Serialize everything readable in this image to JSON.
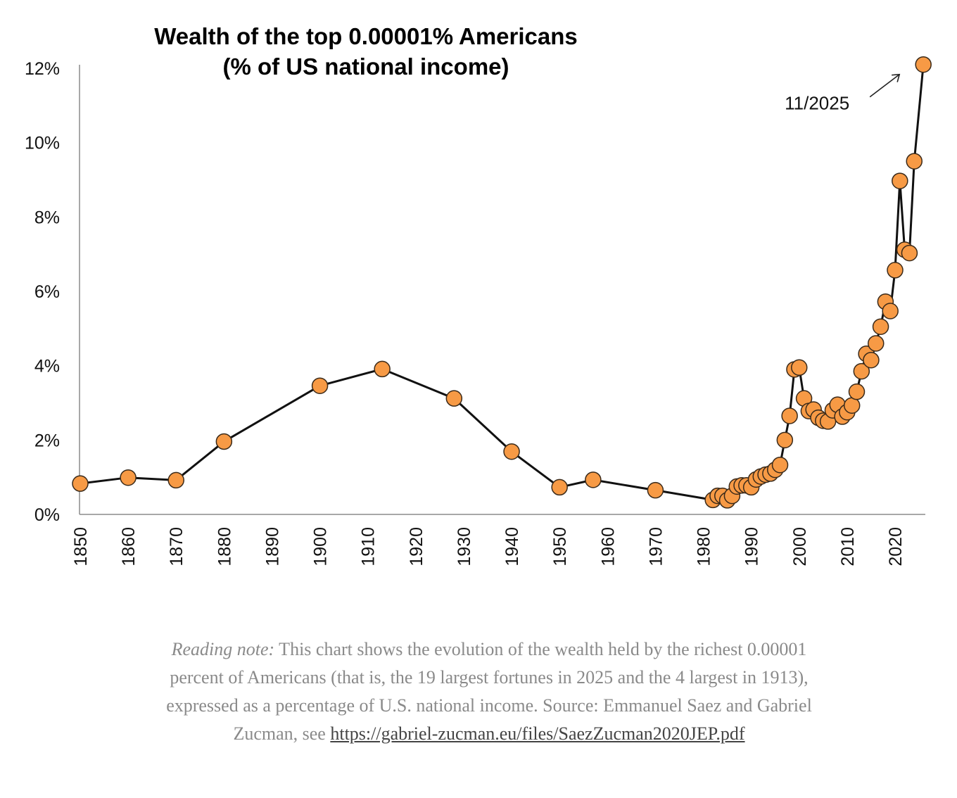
{
  "chart_data": {
    "type": "line",
    "title_lines": [
      "Wealth of the top 0.00001% Americans",
      "(% of US national income)"
    ],
    "xlabel": "",
    "ylabel": "",
    "xlim": [
      1850,
      2025.9
    ],
    "ylim": [
      0,
      12
    ],
    "grid": false,
    "legend": "none",
    "y_ticks": [
      0,
      2,
      4,
      6,
      8,
      10,
      12
    ],
    "y_tick_labels": [
      "0%",
      "2%",
      "4%",
      "6%",
      "8%",
      "10%",
      "12%"
    ],
    "x_ticks": [
      1850,
      1860,
      1870,
      1880,
      1890,
      1900,
      1910,
      1920,
      1930,
      1940,
      1950,
      1960,
      1970,
      1980,
      1990,
      2000,
      2010,
      2020
    ],
    "x_tick_labels": [
      "1850",
      "1860",
      "1870",
      "1880",
      "1890",
      "1900",
      "1910",
      "1920",
      "1930",
      "1940",
      "1950",
      "1960",
      "1970",
      "1980",
      "1990",
      "2000",
      "2010",
      "2020"
    ],
    "series": [
      {
        "name": "Top 0.00001% wealth (% of national income)",
        "line_color": "#111111",
        "marker_color": "#F79A45",
        "marker_edge": "#3a2a1a",
        "points": [
          [
            1850,
            0.83
          ],
          [
            1860,
            0.99
          ],
          [
            1870,
            0.92
          ],
          [
            1880,
            1.96
          ],
          [
            1900,
            3.46
          ],
          [
            1913,
            3.91
          ],
          [
            1928,
            3.12
          ],
          [
            1940,
            1.69
          ],
          [
            1950,
            0.73
          ],
          [
            1957,
            0.93
          ],
          [
            1970,
            0.65
          ],
          [
            1982,
            0.39
          ],
          [
            1983,
            0.5
          ],
          [
            1984,
            0.5
          ],
          [
            1985,
            0.38
          ],
          [
            1986,
            0.5
          ],
          [
            1987,
            0.75
          ],
          [
            1988,
            0.78
          ],
          [
            1989,
            0.78
          ],
          [
            1990,
            0.73
          ],
          [
            1991,
            0.94
          ],
          [
            1992,
            1.02
          ],
          [
            1993,
            1.07
          ],
          [
            1994,
            1.1
          ],
          [
            1995,
            1.2
          ],
          [
            1996,
            1.33
          ],
          [
            1997,
            2.0
          ],
          [
            1998,
            2.65
          ],
          [
            1999,
            3.9
          ],
          [
            2000,
            3.95
          ],
          [
            2001,
            3.12
          ],
          [
            2002,
            2.78
          ],
          [
            2003,
            2.82
          ],
          [
            2004,
            2.6
          ],
          [
            2005,
            2.52
          ],
          [
            2006,
            2.5
          ],
          [
            2007,
            2.8
          ],
          [
            2008,
            2.95
          ],
          [
            2009,
            2.63
          ],
          [
            2010,
            2.75
          ],
          [
            2011,
            2.93
          ],
          [
            2012,
            3.3
          ],
          [
            2013,
            3.85
          ],
          [
            2014,
            4.32
          ],
          [
            2015,
            4.15
          ],
          [
            2016,
            4.6
          ],
          [
            2017,
            5.05
          ],
          [
            2018,
            5.72
          ],
          [
            2019,
            5.47
          ],
          [
            2020,
            6.57
          ],
          [
            2021,
            8.97
          ],
          [
            2022,
            7.12
          ],
          [
            2023,
            7.03
          ],
          [
            2024,
            9.5
          ],
          [
            2025.9,
            12.1
          ]
        ]
      }
    ],
    "annotations": [
      {
        "text": "11/2025",
        "points_to": [
          2025.9,
          12.1
        ],
        "arrow": true
      }
    ]
  },
  "caption": {
    "lead": "Reading note:",
    "body": " This chart shows the evolution of the wealth held by the richest 0.00001 percent of Americans (that is, the 19 largest fortunes in 2025 and the 4 largest in 1913), expressed as a percentage of U.S. national income. Source: Emmanuel Saez and Gabriel Zucman, see ",
    "link_text": "https://gabriel-zucman.eu/files/SaezZucman2020JEP.pdf"
  }
}
